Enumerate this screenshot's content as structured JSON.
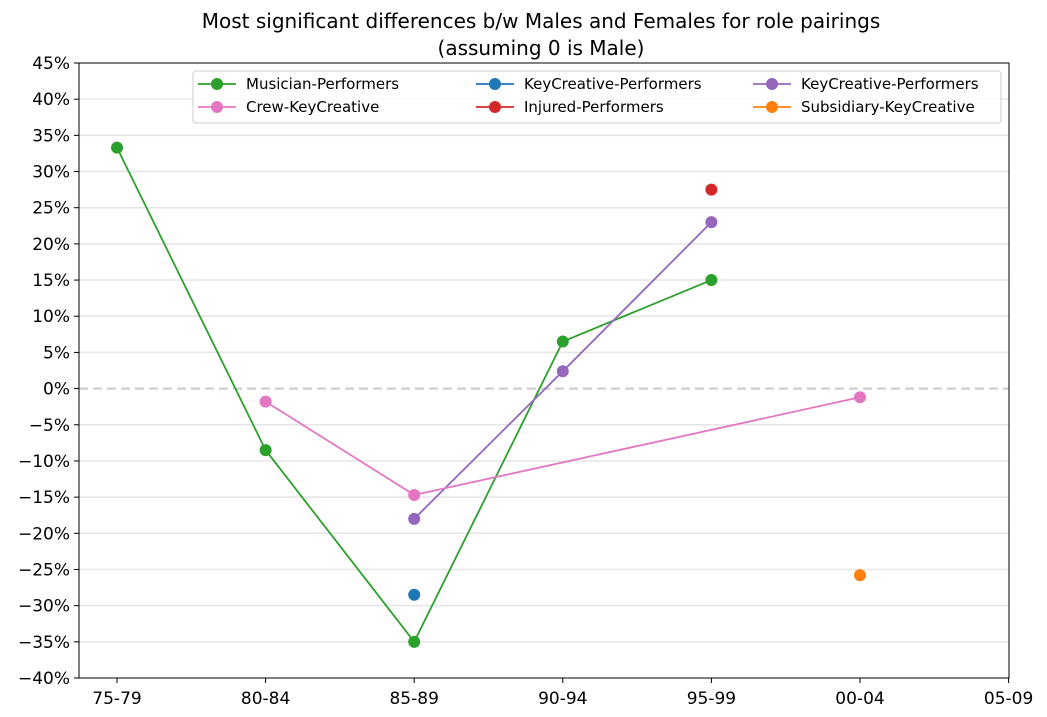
{
  "chart_data": {
    "type": "line",
    "title": "Most significant differences b/w Males and Females for role pairings",
    "subtitle": "(assuming 0 is Male)",
    "xlabel": "",
    "ylabel": "",
    "categories": [
      "75-79",
      "80-84",
      "85-89",
      "90-94",
      "95-99",
      "00-04",
      "05-09"
    ],
    "ylim": [
      -40,
      45
    ],
    "yticks": [
      -40,
      -35,
      -30,
      -25,
      -20,
      -15,
      -10,
      -5,
      0,
      5,
      10,
      15,
      20,
      25,
      30,
      35,
      40,
      45
    ],
    "ytick_suffix": "%",
    "grid": "horizontal",
    "zero_line": true,
    "legend_position": "top-right",
    "series": [
      {
        "name": "Musician-Performers",
        "color": "#2ca02c",
        "values": [
          33.3,
          -8.5,
          -35.0,
          6.5,
          15.0,
          null,
          null
        ]
      },
      {
        "name": "KeyCreative-Performers",
        "color": "#1f77b4",
        "values": [
          null,
          null,
          -28.5,
          null,
          null,
          null,
          null
        ]
      },
      {
        "name": "KeyCreative-Performers",
        "color": "#9467bd",
        "values": [
          null,
          null,
          -18.0,
          2.4,
          23.0,
          null,
          null
        ]
      },
      {
        "name": "Crew-KeyCreative",
        "color": "#e377c2",
        "values": [
          null,
          -1.8,
          -14.7,
          null,
          null,
          -1.2,
          null
        ]
      },
      {
        "name": "Injured-Performers",
        "color": "#d62728",
        "values": [
          null,
          null,
          null,
          null,
          27.5,
          null,
          null
        ]
      },
      {
        "name": "Subsidiary-KeyCreative",
        "color": "#ff7f0e",
        "values": [
          null,
          null,
          null,
          null,
          null,
          -25.8,
          null
        ]
      }
    ]
  }
}
